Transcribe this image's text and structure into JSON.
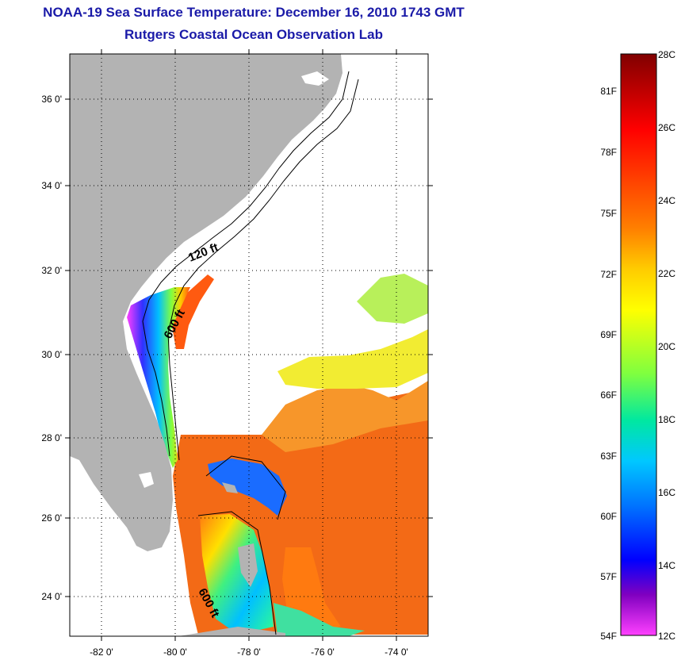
{
  "title": {
    "line1": "NOAA-19 Sea Surface Temperature:  December 16, 2010 1743 GMT",
    "line2": "Rutgers Coastal Ocean Observation Lab"
  },
  "map": {
    "lat_ticks": [
      "24 0'",
      "26 0'",
      "28 0'",
      "30 0'",
      "32 0'",
      "34 0'",
      "36 0'"
    ],
    "lon_ticks": [
      "-82 0'",
      "-80 0'",
      "-78 0'",
      "-76 0'",
      "-74 0'"
    ],
    "isobaths": [
      "120 ft",
      "600 ft",
      "600 ft"
    ],
    "colors": {
      "land": "#b3b3b3",
      "ocean_nodata": "#ffffff",
      "warm_water": "#f36a16",
      "gulf_stream_core": "#ff5a10"
    }
  },
  "colorbar": {
    "celsius": [
      "28C",
      "26C",
      "24C",
      "22C",
      "20C",
      "18C",
      "16C",
      "14C",
      "12C"
    ],
    "fahrenheit": [
      "81F",
      "78F",
      "75F",
      "72F",
      "69F",
      "66F",
      "63F",
      "60F",
      "57F",
      "54F"
    ],
    "range_c": [
      12,
      28
    ],
    "stops": [
      "#800000",
      "#ff0000",
      "#ff7f00",
      "#ffd000",
      "#ffff00",
      "#7fff3f",
      "#00e0a0",
      "#00c0ff",
      "#0070ff",
      "#0000ff",
      "#8000c0",
      "#ff40ff"
    ]
  }
}
